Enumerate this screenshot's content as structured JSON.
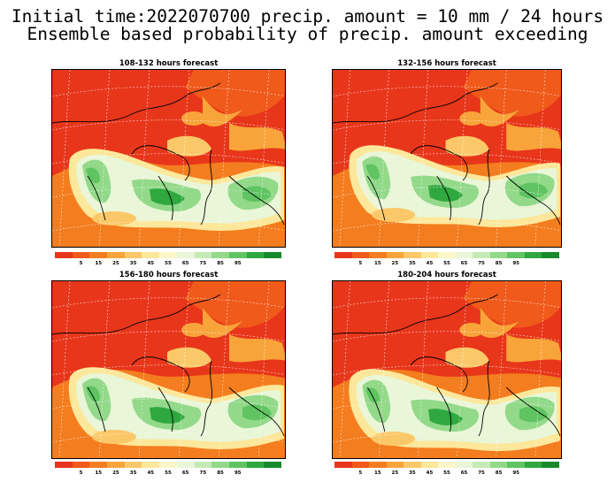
{
  "title_line1": "Initial time:2022070700 precip. amount = 10 mm / 24 hours",
  "title_line2": "Ensemble based probability of precip. amount exceeding",
  "panels": [
    {
      "title": "108-132 hours forecast"
    },
    {
      "title": "132-156 hours forecast"
    },
    {
      "title": "156-180 hours forecast"
    },
    {
      "title": "180-204 hours forecast"
    }
  ],
  "colorbar": {
    "labels": [
      "5",
      "15",
      "25",
      "35",
      "45",
      "55",
      "65",
      "75",
      "85",
      "95"
    ],
    "colors": [
      "#e8361a",
      "#f05a1a",
      "#f47d1f",
      "#f8a43a",
      "#fbc869",
      "#fde79a",
      "#fdf7c8",
      "#e9f6d8",
      "#c5ebb4",
      "#93d98a",
      "#5fc461",
      "#2fa83f",
      "#198a2c"
    ]
  }
}
